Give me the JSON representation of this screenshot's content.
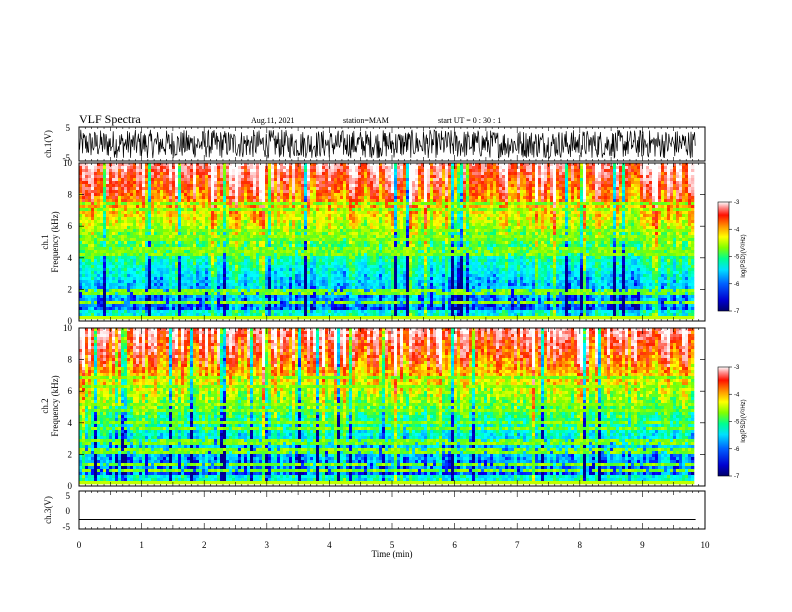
{
  "chart_data": {
    "type": "heatmap",
    "title": "VLF Spectra",
    "date": "Aug.11, 2021",
    "station": "station=MAM",
    "start_label": "start UT =  0 : 30 : 1",
    "xlabel": "Time (min)",
    "xlim": [
      0,
      10
    ],
    "xticks": [
      "0",
      "1",
      "2",
      "3",
      "4",
      "5",
      "6",
      "7",
      "8",
      "9",
      "10"
    ],
    "data_end_min": 9.85,
    "panels": [
      {
        "id": "ch1-waveform",
        "type": "line",
        "ylabel": "ch.1(V)",
        "ylim": [
          -5,
          5
        ],
        "yticks": [
          "5",
          "-5"
        ],
        "trace": "dense noise, roughly -4 to +4 V"
      },
      {
        "id": "ch1-spectrogram",
        "type": "heatmap",
        "ylabel_top": "ch.1",
        "ylabel": "Frequency (kHz)",
        "ylim": [
          0,
          10
        ],
        "yticks": [
          "0",
          "2",
          "4",
          "6",
          "8",
          "10"
        ],
        "colorbar_label": "log(PSD)(V²/Hz)",
        "colorbar_range": [
          -7,
          -3
        ],
        "colorbar_ticks": [
          "-3",
          "-4",
          "-5",
          "-6",
          "-7"
        ]
      },
      {
        "id": "ch2-spectrogram",
        "type": "heatmap",
        "ylabel_top": "ch.2",
        "ylabel": "Frequency (kHz)",
        "ylim": [
          0,
          10
        ],
        "yticks": [
          "0",
          "2",
          "4",
          "6",
          "8",
          "10"
        ],
        "colorbar_label": "log(PSD)(V²/Hz)",
        "colorbar_range": [
          -7,
          -3
        ],
        "colorbar_ticks": [
          "-3",
          "-4",
          "-5",
          "-6",
          "-7"
        ]
      },
      {
        "id": "ch3-waveform",
        "type": "line",
        "ylabel": "ch.3(V)",
        "ylim": [
          -5,
          5
        ],
        "yticks": [
          "5",
          "0",
          "-5"
        ],
        "trace": "flat at about -2.5 V"
      }
    ],
    "colormap": [
      "#00008f",
      "#0000ff",
      "#00b4ff",
      "#00ffff",
      "#00ff80",
      "#80ff00",
      "#ffff00",
      "#ff9000",
      "#ff2000",
      "#ffb0b0",
      "#ffffff"
    ],
    "grid": false,
    "legend": "colorbar right"
  }
}
